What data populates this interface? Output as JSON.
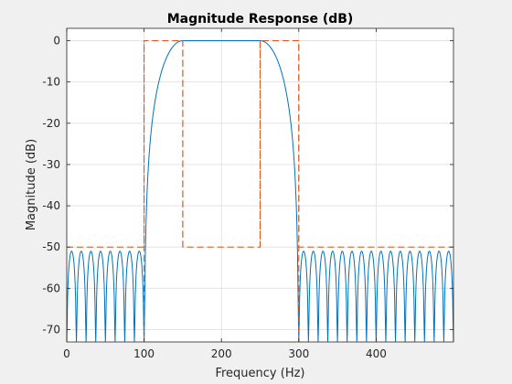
{
  "chart_data": {
    "type": "line",
    "title": "Magnitude Response (dB)",
    "xlabel": "Frequency (Hz)",
    "ylabel": "Magnitude (dB)",
    "xlim": [
      0,
      500
    ],
    "ylim": [
      -73,
      3
    ],
    "xticks": [
      0,
      100,
      200,
      300,
      400
    ],
    "yticks": [
      0,
      -10,
      -20,
      -30,
      -40,
      -50,
      -60,
      -70
    ],
    "grid": true,
    "series": [
      {
        "kind": "filter-response",
        "color": "#0072bd",
        "passband": [
          150,
          250
        ],
        "stopband_edges": [
          100,
          300
        ],
        "passband_level": 0,
        "sidelobe_peak": -51,
        "sidelobe_floor": -73,
        "left_lobes": 8,
        "right_lobes": 16
      },
      {
        "kind": "specification-mask",
        "color": "#d95319",
        "style": "dashed",
        "x": [
          0,
          100,
          100,
          150,
          150,
          250,
          250,
          300,
          300,
          500
        ],
        "y": [
          -50,
          -50,
          0,
          0,
          -50,
          -50,
          0,
          0,
          -50,
          -50
        ],
        "verticals": [
          {
            "x": 100,
            "from": -73,
            "to": 0
          },
          {
            "x": 300,
            "from": -73,
            "to": 0
          },
          {
            "x": 150,
            "from": -50,
            "to": 0
          },
          {
            "x": 250,
            "from": -50,
            "to": 0
          }
        ]
      }
    ]
  }
}
